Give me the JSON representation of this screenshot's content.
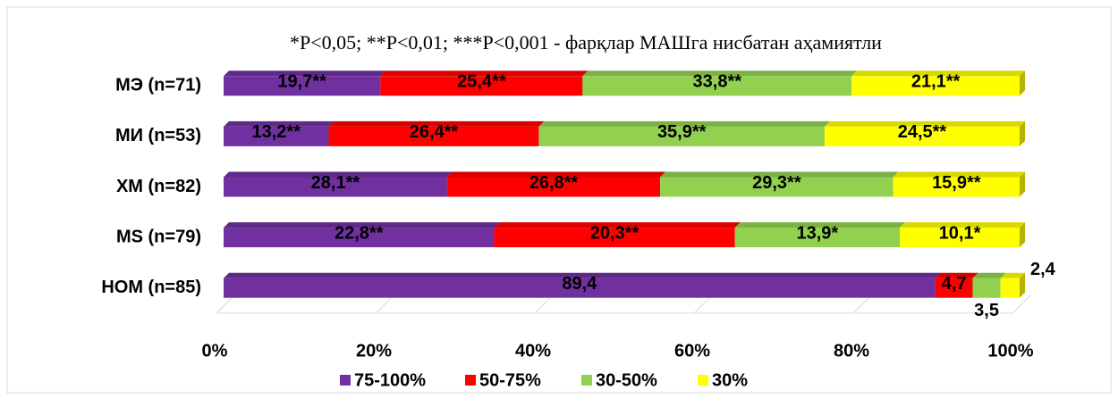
{
  "chart_data": {
    "type": "bar",
    "orientation": "horizontal",
    "stacked": "percent",
    "annotation": "*P<0,05; **P<0,01; ***P<0,001 - фарқлар МАШга нисбатан аҳамиятли",
    "categories": [
      "МЭ (n=71)",
      "МИ (n=53)",
      "ХМ (n=82)",
      "MS (n=79)",
      "НОМ (n=85)"
    ],
    "series": [
      {
        "name": "75-100%",
        "color": "#7030a0",
        "values": [
          19.7,
          13.2,
          28.1,
          22.8,
          89.4
        ],
        "value_labels": [
          "19,7**",
          "13,2**",
          "28,1**",
          "22,8**",
          "89,4"
        ]
      },
      {
        "name": "50-75%",
        "color": "#ff0000",
        "values": [
          25.4,
          26.4,
          26.8,
          20.3,
          4.7
        ],
        "value_labels": [
          "25,4**",
          "26,4**",
          "26,8**",
          "20,3**",
          "4,7"
        ]
      },
      {
        "name": "30-50%",
        "color": "#92d050",
        "values": [
          33.8,
          35.9,
          29.3,
          13.9,
          3.5
        ],
        "value_labels": [
          "33,8**",
          "35,9**",
          "29,3**",
          "13,9*",
          "3,5"
        ]
      },
      {
        "name": "30%",
        "color": "#ffff00",
        "values": [
          21.1,
          24.5,
          15.9,
          10.1,
          2.4
        ],
        "value_labels": [
          "21,1**",
          "24,5**",
          "15,9**",
          "10,1*",
          "2,4"
        ]
      }
    ],
    "xlim": [
      0,
      100
    ],
    "xticks": [
      {
        "value": 0,
        "label": "0%"
      },
      {
        "value": 20,
        "label": "20%"
      },
      {
        "value": 40,
        "label": "40%"
      },
      {
        "value": 60,
        "label": "60%"
      },
      {
        "value": 80,
        "label": "80%"
      },
      {
        "value": 100,
        "label": "100%"
      }
    ],
    "legend": "bottom"
  }
}
